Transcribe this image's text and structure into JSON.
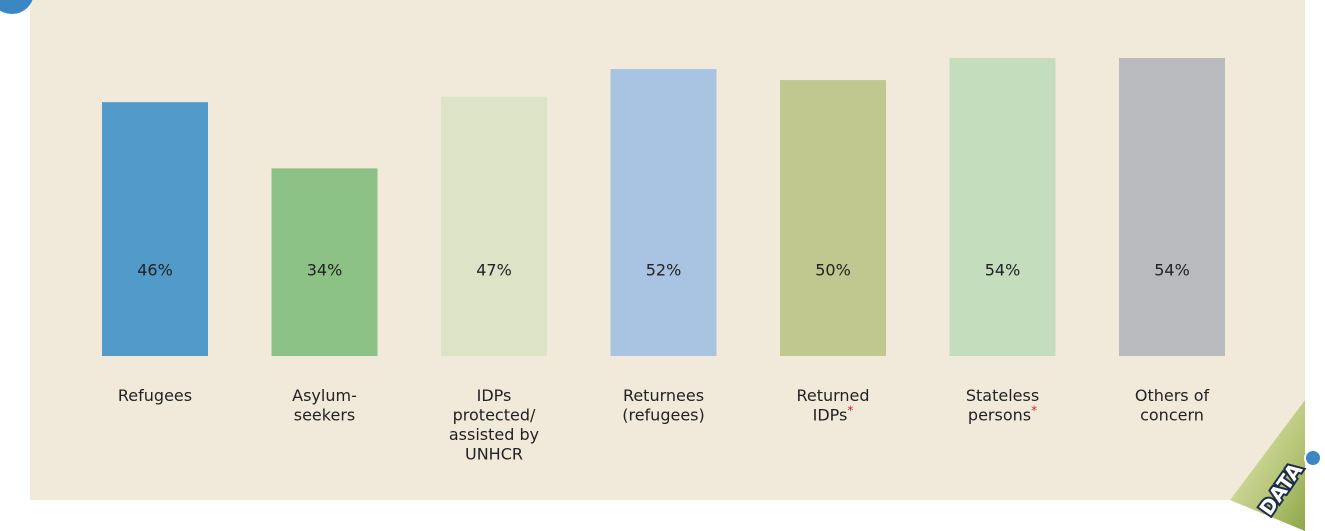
{
  "chart_data": {
    "type": "bar",
    "categories": [
      [
        "Refugees"
      ],
      [
        "Asylum-",
        "seekers"
      ],
      [
        "IDPs",
        "protected/",
        "assisted by",
        "UNHCR"
      ],
      [
        "Returnees",
        "(refugees)"
      ],
      [
        "Returned",
        "IDPs"
      ],
      [
        "Stateless",
        "persons"
      ],
      [
        "Others of",
        "concern"
      ]
    ],
    "category_notes": [
      null,
      null,
      null,
      null,
      "*",
      "*",
      null
    ],
    "values": [
      46,
      34,
      47,
      52,
      50,
      54,
      54
    ],
    "value_labels": [
      "46%",
      "34%",
      "47%",
      "52%",
      "50%",
      "54%",
      "54%"
    ],
    "colors": [
      "#529ac9",
      "#8cc286",
      "#dde3c6",
      "#a8c4e2",
      "#c0c890",
      "#c3ddbd",
      "#b9babd"
    ],
    "badge": "DATA"
  }
}
